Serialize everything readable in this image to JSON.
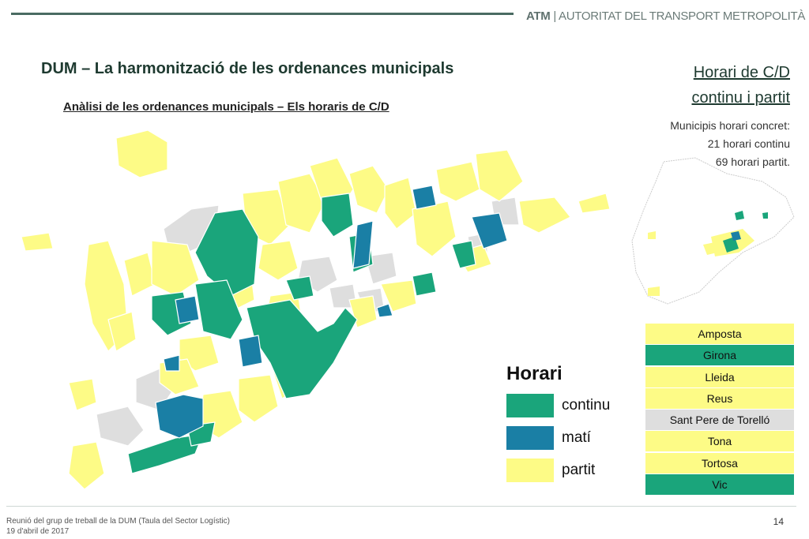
{
  "header": {
    "brand_abbr": "ATM",
    "brand_name": "| AUTORITAT DEL TRANSPORT METROPOLITÀ"
  },
  "title": "DUM – La harmonització de les ordenances municipals",
  "subtitle": "Anàlisi de les ordenances municipals – Els horaris de C/D",
  "side": {
    "title_line1": "Horari de C/D",
    "title_line2": "continu i partit",
    "text_line1": "Municipis horari concret:",
    "text_line2": "21 horari continu",
    "text_line3": "69 horari partit."
  },
  "colors": {
    "continu": "#1aa57b",
    "mati": "#1a7fa5",
    "partit": "#fdfb86",
    "sense_dades": "#dedede",
    "brand": "#1e3a30"
  },
  "legend": {
    "title": "Horari",
    "items": [
      {
        "label": "continu",
        "color": "#1aa57b"
      },
      {
        "label": "matí",
        "color": "#1a7fa5"
      },
      {
        "label": "partit",
        "color": "#fdfb86"
      }
    ]
  },
  "cities": [
    {
      "name": "Amposta",
      "color": "#fdfb86"
    },
    {
      "name": "Girona",
      "color": "#1aa57b"
    },
    {
      "name": "Lleida",
      "color": "#fdfb86"
    },
    {
      "name": "Reus",
      "color": "#fdfb86"
    },
    {
      "name": "Sant Pere de Torelló",
      "color": "#dedede"
    },
    {
      "name": "Tona",
      "color": "#fdfb86"
    },
    {
      "name": "Tortosa",
      "color": "#fdfb86"
    },
    {
      "name": "Vic",
      "color": "#1aa57b"
    }
  ],
  "footer": {
    "line1": "Reunió del grup de treball de la DUM (Taula del Sector Logístic)",
    "line2": "19 d'abril de 2017",
    "page": "14"
  }
}
